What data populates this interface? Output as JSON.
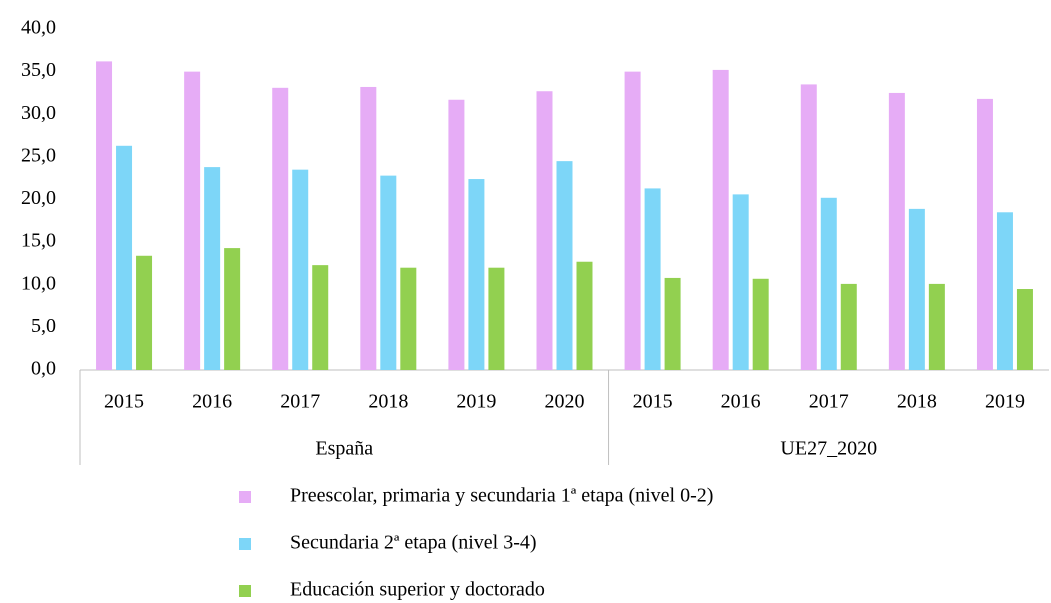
{
  "chart_data": {
    "type": "bar",
    "groups": [
      {
        "label": "España",
        "categories": [
          "2015",
          "2016",
          "2017",
          "2018",
          "2019",
          "2020"
        ]
      },
      {
        "label": "UE27_2020",
        "categories": [
          "2015",
          "2016",
          "2017",
          "2018",
          "2019"
        ]
      }
    ],
    "series": [
      {
        "name": "Preescolar, primaria y secundaria 1ª etapa (nivel 0-2)",
        "color": "#e6acf6",
        "values": [
          36.2,
          35.0,
          33.1,
          33.2,
          31.7,
          32.7,
          35.0,
          35.2,
          33.5,
          32.5,
          31.8
        ]
      },
      {
        "name": "Secundaria 2ª etapa (nivel 3-4)",
        "color": "#7dd6f8",
        "values": [
          26.3,
          23.8,
          23.5,
          22.8,
          22.4,
          24.5,
          21.3,
          20.6,
          20.2,
          18.9,
          18.5
        ]
      },
      {
        "name": "Educación superior y doctorado",
        "color": "#92d050",
        "values": [
          13.4,
          14.3,
          12.3,
          12.0,
          12.0,
          12.7,
          10.8,
          10.7,
          10.1,
          10.1,
          9.5
        ]
      }
    ],
    "ylim": [
      0,
      40
    ],
    "yticks": [
      {
        "value": 0,
        "label": "0,0"
      },
      {
        "value": 5,
        "label": "5,0"
      },
      {
        "value": 10,
        "label": "10,0"
      },
      {
        "value": 15,
        "label": "15,0"
      },
      {
        "value": 20,
        "label": "20,0"
      },
      {
        "value": 25,
        "label": "25,0"
      },
      {
        "value": 30,
        "label": "30,0"
      },
      {
        "value": 35,
        "label": "35,0"
      },
      {
        "value": 40,
        "label": "40,0"
      }
    ],
    "grid": false
  }
}
